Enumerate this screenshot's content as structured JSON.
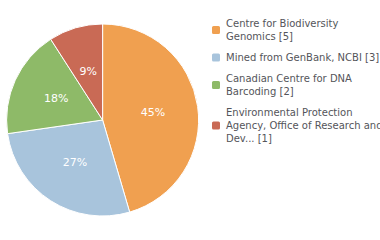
{
  "chart_data": {
    "type": "pie",
    "categories": [
      "Centre for Biodiversity\nGenomics [5]",
      "Mined from GenBank, NCBI [3]",
      "Canadian Centre for DNA\nBarcoding [2]",
      "Environmental Protection\nAgency, Office of Research and\nDev... [1]"
    ],
    "values": [
      45,
      27,
      18,
      9
    ],
    "value_labels": [
      "45%",
      "27%",
      "18%",
      "9%"
    ],
    "colors": [
      "#f0a050",
      "#a8c4dc",
      "#8eba68",
      "#c96a55"
    ],
    "data_labels": true,
    "legend": "right"
  }
}
